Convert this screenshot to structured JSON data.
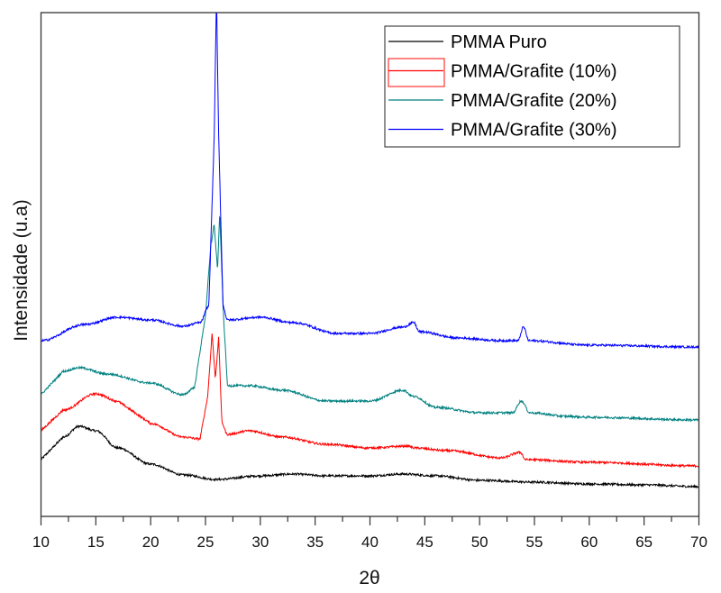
{
  "chart_data": {
    "type": "line",
    "title": "",
    "xlabel": "2θ",
    "ylabel": "Intensidade (u.a)",
    "xlim": [
      10,
      70
    ],
    "ylim": [
      0,
      559
    ],
    "xticks": [
      "10",
      "15",
      "20",
      "25",
      "30",
      "35",
      "40",
      "45",
      "50",
      "55",
      "60",
      "65",
      "70"
    ],
    "minor_x_step": 2.5,
    "yticks": [],
    "grid": false,
    "legend_position": "top-right",
    "series": [
      {
        "name": "PMMA Puro",
        "color": "#000000",
        "x": [
          10,
          12,
          13.5,
          15,
          17,
          20,
          23,
          26,
          30,
          33,
          36,
          40,
          43,
          46,
          50,
          55,
          60,
          65,
          70
        ],
        "y": [
          63,
          88,
          100,
          95,
          76,
          58,
          46,
          41,
          45,
          47,
          45,
          45,
          47,
          45,
          40,
          38,
          36,
          35,
          33
        ]
      },
      {
        "name": "PMMA/Grafite (10%)",
        "color": "#ff0000",
        "x": [
          10,
          12,
          15,
          17,
          20,
          23,
          24.5,
          25.2,
          25.6,
          25.9,
          26.2,
          26.5,
          27,
          29,
          32,
          36,
          40,
          43.5,
          44,
          47,
          52,
          53.7,
          54.2,
          60,
          70
        ],
        "y": [
          95,
          118,
          136,
          128,
          103,
          88,
          86,
          133,
          203,
          153,
          198,
          103,
          91,
          95,
          88,
          80,
          76,
          78,
          76,
          73,
          65,
          71,
          63,
          60,
          56
        ]
      },
      {
        "name": "PMMA/Grafite (20%)",
        "color": "#008080",
        "x": [
          10,
          12,
          13.5,
          16,
          20,
          23,
          24,
          25,
          25.5,
          25.8,
          26.1,
          26.3,
          26.6,
          27,
          29,
          32,
          36,
          40,
          43,
          44,
          46,
          50,
          53,
          53.8,
          54.6,
          58,
          60,
          70
        ],
        "y": [
          135,
          161,
          165,
          158,
          148,
          135,
          143,
          223,
          303,
          323,
          273,
          338,
          233,
          145,
          145,
          140,
          128,
          128,
          140,
          133,
          121,
          115,
          115,
          128,
          115,
          111,
          110,
          107
        ]
      },
      {
        "name": "PMMA/Grafite (30%)",
        "color": "#0000ff",
        "x": [
          10,
          14,
          17,
          20,
          23,
          24.5,
          25.3,
          25.8,
          26.0,
          26.2,
          26.6,
          27,
          30,
          33,
          37,
          40,
          43,
          44,
          44.5,
          48,
          52,
          53.5,
          54,
          54.5,
          60,
          70
        ],
        "y": [
          195,
          213,
          221,
          218,
          211,
          215,
          233,
          423,
          580,
          423,
          233,
          218,
          221,
          215,
          203,
          203,
          210,
          215,
          205,
          198,
          195,
          195,
          210,
          195,
          190,
          188
        ]
      }
    ]
  }
}
